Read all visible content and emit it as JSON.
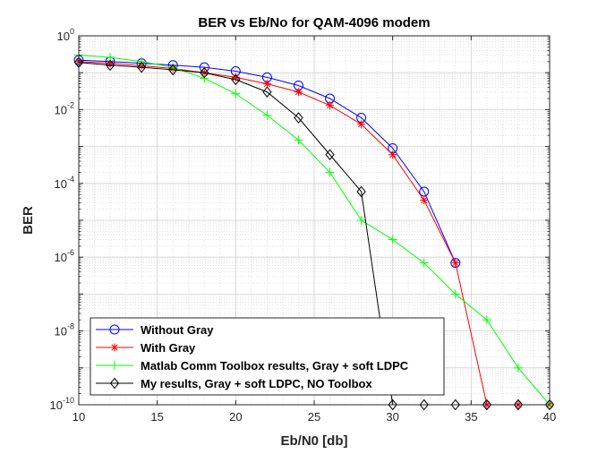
{
  "chart_data": {
    "type": "line",
    "title": "BER vs Eb/No for QAM-4096 modem",
    "xlabel": "Eb/N0 [db]",
    "ylabel": "BER",
    "xlim": [
      10,
      40
    ],
    "ylim": [
      1e-10,
      1
    ],
    "yscale": "log",
    "grid": true,
    "minor_grid": true,
    "x_ticks": [
      10,
      15,
      20,
      25,
      30,
      35,
      40
    ],
    "x_tick_labels": [
      "10",
      "15",
      "20",
      "25",
      "30",
      "35",
      "40"
    ],
    "y_ticks": [
      1e-10,
      1e-08,
      1e-06,
      0.0001,
      0.01,
      1
    ],
    "y_tick_labels": [
      {
        "base": "10",
        "exp": "-10"
      },
      {
        "base": "10",
        "exp": "-8"
      },
      {
        "base": "10",
        "exp": "-6"
      },
      {
        "base": "10",
        "exp": "-4"
      },
      {
        "base": "10",
        "exp": "-2"
      },
      {
        "base": "10",
        "exp": "0"
      }
    ],
    "legend_position": "bottom-left",
    "series": [
      {
        "name": "Without Gray",
        "color": "#0000ff",
        "marker": "circle",
        "x": [
          10,
          12,
          14,
          16,
          18,
          20,
          22,
          24,
          26,
          28,
          30,
          32,
          34
        ],
        "y": [
          0.22,
          0.2,
          0.18,
          0.16,
          0.14,
          0.11,
          0.075,
          0.045,
          0.02,
          0.006,
          0.0009,
          6e-05,
          7e-07
        ]
      },
      {
        "name": "With Gray",
        "color": "#ff0000",
        "marker": "star",
        "x": [
          10,
          12,
          14,
          16,
          18,
          20,
          22,
          24,
          26,
          28,
          30,
          32,
          34,
          36,
          38,
          40
        ],
        "y": [
          0.2,
          0.18,
          0.155,
          0.13,
          0.1,
          0.075,
          0.05,
          0.03,
          0.013,
          0.004,
          0.0006,
          3.5e-05,
          7e-07,
          1e-10,
          1e-10,
          1e-10
        ]
      },
      {
        "name": "Matlab Comm Toolbox results, Gray + soft LDPC",
        "color": "#00ff00",
        "marker": "plus",
        "x": [
          10,
          12,
          14,
          16,
          18,
          20,
          22,
          24,
          26,
          28,
          30,
          32,
          34,
          36,
          38,
          40
        ],
        "y": [
          0.3,
          0.26,
          0.2,
          0.14,
          0.07,
          0.027,
          0.007,
          0.0015,
          0.0002,
          1e-05,
          3e-06,
          7e-07,
          1e-07,
          2e-08,
          1e-09,
          1e-10
        ]
      },
      {
        "name": "My results, Gray + soft LDPC, NO Toolbox",
        "color": "#000000",
        "marker": "diamond",
        "x": [
          10,
          12,
          14,
          16,
          18,
          20,
          22,
          24,
          26,
          28,
          30,
          32,
          34,
          36,
          38,
          40
        ],
        "y": [
          0.19,
          0.16,
          0.14,
          0.12,
          0.1,
          0.065,
          0.03,
          0.006,
          0.0006,
          6e-05,
          1e-10,
          1e-10,
          1e-10,
          1e-10,
          1e-10,
          1e-10
        ]
      }
    ]
  }
}
